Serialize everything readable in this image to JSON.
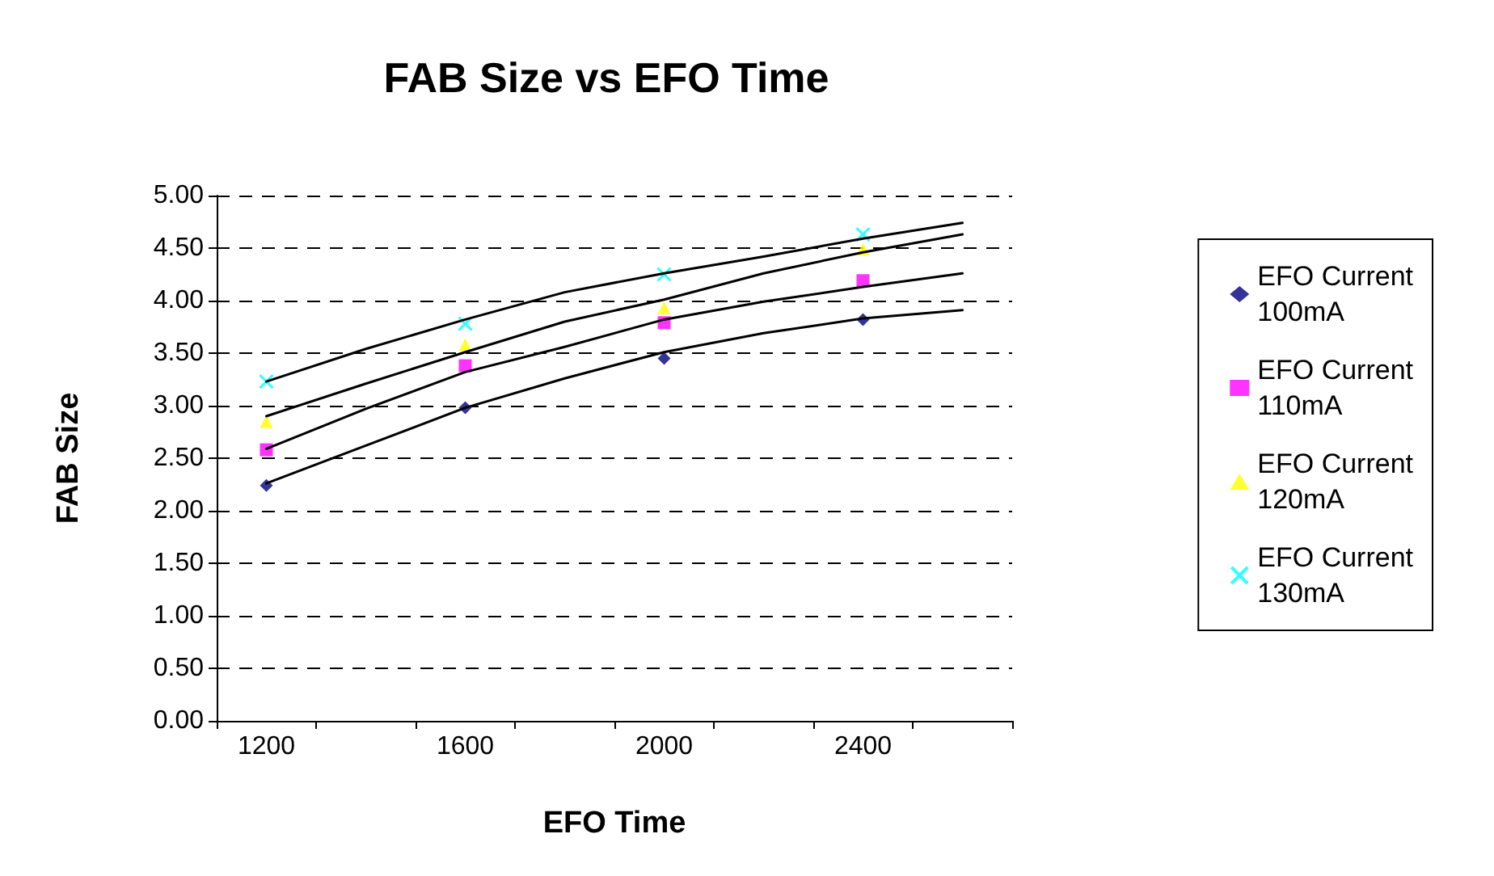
{
  "chart_data": {
    "type": "scatter",
    "title": "FAB Size vs EFO Time",
    "xlabel": "EFO Time",
    "ylabel": "FAB Size",
    "categories": [
      "1200",
      null,
      "1600",
      null,
      "2000",
      null,
      "2400",
      null
    ],
    "ylim": [
      0,
      5
    ],
    "yticks": [
      {
        "value": 0,
        "label": "0.00"
      },
      {
        "value": 0.5,
        "label": "0.50"
      },
      {
        "value": 1,
        "label": "1.00"
      },
      {
        "value": 1.5,
        "label": "1.50"
      },
      {
        "value": 2,
        "label": "2.00"
      },
      {
        "value": 2.5,
        "label": "2.50"
      },
      {
        "value": 3,
        "label": "3.00"
      },
      {
        "value": 3.5,
        "label": "3.50"
      },
      {
        "value": 4,
        "label": "4.00"
      },
      {
        "value": 4.5,
        "label": "4.50"
      },
      {
        "value": 5,
        "label": "5.00"
      }
    ],
    "grid": "y",
    "legend": "right",
    "series": [
      {
        "name": "EFO Current 100mA",
        "color": "#000080",
        "marker": "diamond",
        "values": [
          2.24,
          null,
          2.98,
          null,
          3.45,
          null,
          3.82,
          null
        ]
      },
      {
        "name": "EFO Current 110mA",
        "color": "#ff00ff",
        "marker": "square",
        "values": [
          2.58,
          null,
          3.38,
          null,
          3.79,
          null,
          4.19,
          null
        ]
      },
      {
        "name": "EFO Current 120mA",
        "color": "#ffff00",
        "marker": "triangle",
        "values": [
          2.85,
          null,
          3.58,
          null,
          3.93,
          null,
          4.49,
          null
        ]
      },
      {
        "name": "EFO Current 130mA",
        "color": "#00ffff",
        "marker": "cross",
        "values": [
          3.23,
          null,
          3.78,
          null,
          4.25,
          null,
          4.63,
          null
        ]
      },
      {
        "type": "line",
        "color": "#000000",
        "marker": "none",
        "values": [
          2.26,
          2.62,
          2.98,
          3.26,
          3.51,
          3.69,
          3.83,
          3.91
        ]
      },
      {
        "type": "line",
        "color": "#000000",
        "marker": "none",
        "values": [
          2.59,
          2.97,
          3.32,
          3.56,
          3.82,
          3.99,
          4.13,
          4.26
        ]
      },
      {
        "type": "line",
        "color": "#000000",
        "marker": "none",
        "values": [
          2.9,
          3.21,
          3.51,
          3.8,
          4.01,
          4.26,
          4.46,
          4.63
        ]
      },
      {
        "type": "line",
        "color": "#000000",
        "marker": "none",
        "values": [
          3.23,
          3.54,
          3.82,
          4.08,
          4.26,
          4.42,
          4.59,
          4.74
        ]
      }
    ]
  }
}
